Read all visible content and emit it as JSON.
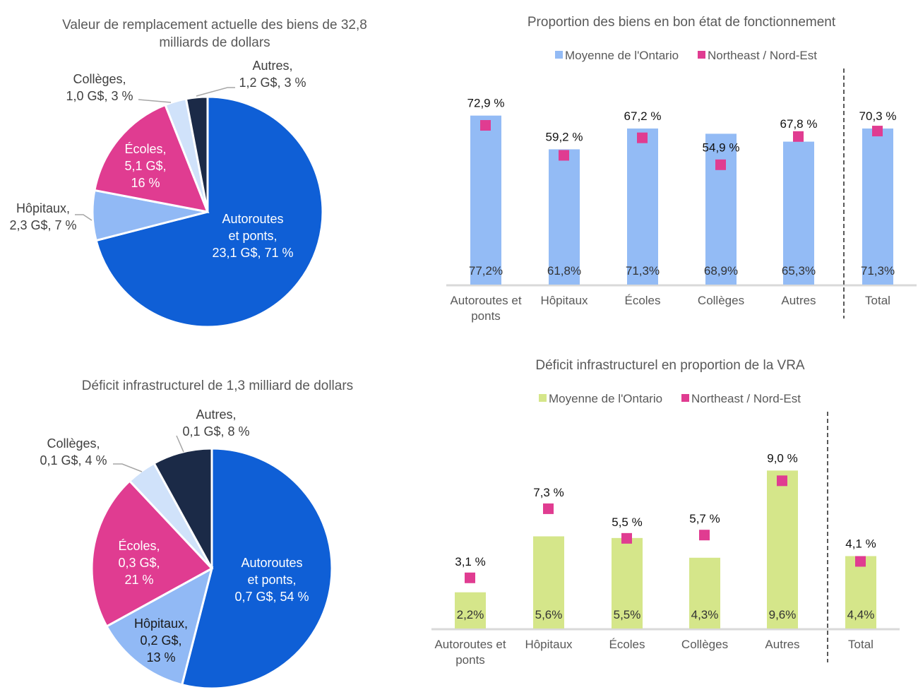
{
  "colors": {
    "highways": "#0f5fd6",
    "hospitals": "#91b9f5",
    "schools": "#e03c91",
    "colleges": "#d0e2fa",
    "others": "#1b2a47",
    "ontario_blue": "#93bbf5",
    "ontario_green": "#d5e68a",
    "northeast": "#e03c91"
  },
  "chart_data": [
    {
      "type": "pie",
      "title_lines": [
        "Valeur de remplacement actuelle des biens de 32,8",
        "milliards de dollars"
      ],
      "slices": [
        {
          "key": "highways",
          "label_lines": [
            "Autoroutes",
            "et ponts,",
            "23,1 G$, 71 %"
          ],
          "value": 23.1,
          "percent": 71
        },
        {
          "key": "hospitals",
          "label_lines": [
            "Hôpitaux,",
            "2,3 G$, 7 %"
          ],
          "value": 2.3,
          "percent": 7
        },
        {
          "key": "schools",
          "label_lines": [
            "Écoles,",
            "5,1 G$,",
            "16 %"
          ],
          "value": 5.1,
          "percent": 16
        },
        {
          "key": "colleges",
          "label_lines": [
            "Collèges,",
            "1,0 G$, 3 %"
          ],
          "value": 1.0,
          "percent": 3
        },
        {
          "key": "others",
          "label_lines": [
            "Autres,",
            "1,2 G$, 3 %"
          ],
          "value": 1.2,
          "percent": 3
        }
      ]
    },
    {
      "type": "bar",
      "title": "Proportion des biens en bon état de fonctionnement",
      "legend": [
        "Moyenne de l'Ontario",
        "Northeast / Nord-Est"
      ],
      "legend_position": "top",
      "categories": [
        [
          "Autoroutes et",
          "ponts"
        ],
        [
          "Hôpitaux"
        ],
        [
          "Écoles"
        ],
        [
          "Collèges"
        ],
        [
          "Autres"
        ],
        [
          "Total"
        ]
      ],
      "series": [
        {
          "name": "Moyenne de l'Ontario",
          "values": [
            77.2,
            61.8,
            71.3,
            68.9,
            65.3,
            71.3
          ],
          "labels": [
            "77,2%",
            "61,8%",
            "71,3%",
            "68,9%",
            "65,3%",
            "71,3%"
          ]
        },
        {
          "name": "Northeast / Nord-Est",
          "values": [
            72.9,
            59.2,
            67.2,
            54.9,
            67.8,
            70.3
          ],
          "labels": [
            "72,9 %",
            "59,2 %",
            "67,2 %",
            "54,9 %",
            "67,8 %",
            "70,3 %"
          ]
        }
      ],
      "ylim": [
        0,
        80
      ],
      "separator_before_index": 5
    },
    {
      "type": "pie",
      "title_lines": [
        "Déficit infrastructurel de 1,3 milliard de dollars"
      ],
      "slices": [
        {
          "key": "highways",
          "label_lines": [
            "Autoroutes",
            "et ponts,",
            "0,7 G$, 54 %"
          ],
          "value": 0.7,
          "percent": 54
        },
        {
          "key": "hospitals",
          "label_lines": [
            "Hôpitaux,",
            "0,2 G$,",
            "13 %"
          ],
          "value": 0.2,
          "percent": 13
        },
        {
          "key": "schools",
          "label_lines": [
            "Écoles,",
            "0,3 G$,",
            "21 %"
          ],
          "value": 0.3,
          "percent": 21
        },
        {
          "key": "colleges",
          "label_lines": [
            "Collèges,",
            "0,1 G$, 4 %"
          ],
          "value": 0.1,
          "percent": 4
        },
        {
          "key": "others",
          "label_lines": [
            "Autres,",
            "0,1 G$, 8 %"
          ],
          "value": 0.1,
          "percent": 8
        }
      ]
    },
    {
      "type": "bar",
      "title": "Déficit infrastructurel en proportion de la VRA",
      "legend": [
        "Moyenne de l'Ontario",
        "Northeast / Nord-Est"
      ],
      "legend_position": "top",
      "categories": [
        [
          "Autoroutes et",
          "ponts"
        ],
        [
          "Hôpitaux"
        ],
        [
          "Écoles"
        ],
        [
          "Collèges"
        ],
        [
          "Autres"
        ],
        [
          "Total"
        ]
      ],
      "series": [
        {
          "name": "Moyenne de l'Ontario",
          "values": [
            2.2,
            5.6,
            5.5,
            4.3,
            9.6,
            4.4
          ],
          "labels": [
            "2,2%",
            "5,6%",
            "5,5%",
            "4,3%",
            "9,6%",
            "4,4%"
          ]
        },
        {
          "name": "Northeast / Nord-Est",
          "values": [
            3.1,
            7.3,
            5.5,
            5.7,
            9.0,
            4.1
          ],
          "labels": [
            "3,1 %",
            "7,3 %",
            "5,5 %",
            "5,7 %",
            "9,0 %",
            "4,1 %"
          ]
        }
      ],
      "ylim": [
        0,
        10
      ],
      "separator_before_index": 5
    }
  ]
}
